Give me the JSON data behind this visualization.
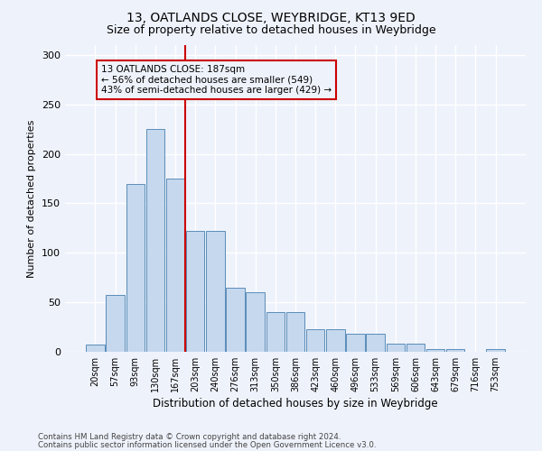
{
  "title1": "13, OATLANDS CLOSE, WEYBRIDGE, KT13 9ED",
  "title2": "Size of property relative to detached houses in Weybridge",
  "xlabel": "Distribution of detached houses by size in Weybridge",
  "ylabel": "Number of detached properties",
  "categories": [
    "20sqm",
    "57sqm",
    "93sqm",
    "130sqm",
    "167sqm",
    "203sqm",
    "240sqm",
    "276sqm",
    "313sqm",
    "350sqm",
    "386sqm",
    "423sqm",
    "460sqm",
    "496sqm",
    "533sqm",
    "569sqm",
    "606sqm",
    "643sqm",
    "679sqm",
    "716sqm",
    "753sqm"
  ],
  "values": [
    7,
    57,
    170,
    225,
    175,
    122,
    122,
    65,
    60,
    40,
    40,
    23,
    23,
    18,
    18,
    8,
    8,
    3,
    3,
    0,
    3
  ],
  "bar_color": "#c5d8ee",
  "bar_edge_color": "#5b8db8",
  "vline_color": "#cc0000",
  "vline_x_index": 4.5,
  "annotation_title": "13 OATLANDS CLOSE: 187sqm",
  "annotation_line2": "← 56% of detached houses are smaller (549)",
  "annotation_line3": "43% of semi-detached houses are larger (429) →",
  "annotation_box_edgecolor": "#cc0000",
  "footer1": "Contains HM Land Registry data © Crown copyright and database right 2024.",
  "footer2": "Contains public sector information licensed under the Open Government Licence v3.0.",
  "ylim": [
    0,
    310
  ],
  "yticks": [
    0,
    50,
    100,
    150,
    200,
    250,
    300
  ],
  "background_color": "#eef2fb"
}
